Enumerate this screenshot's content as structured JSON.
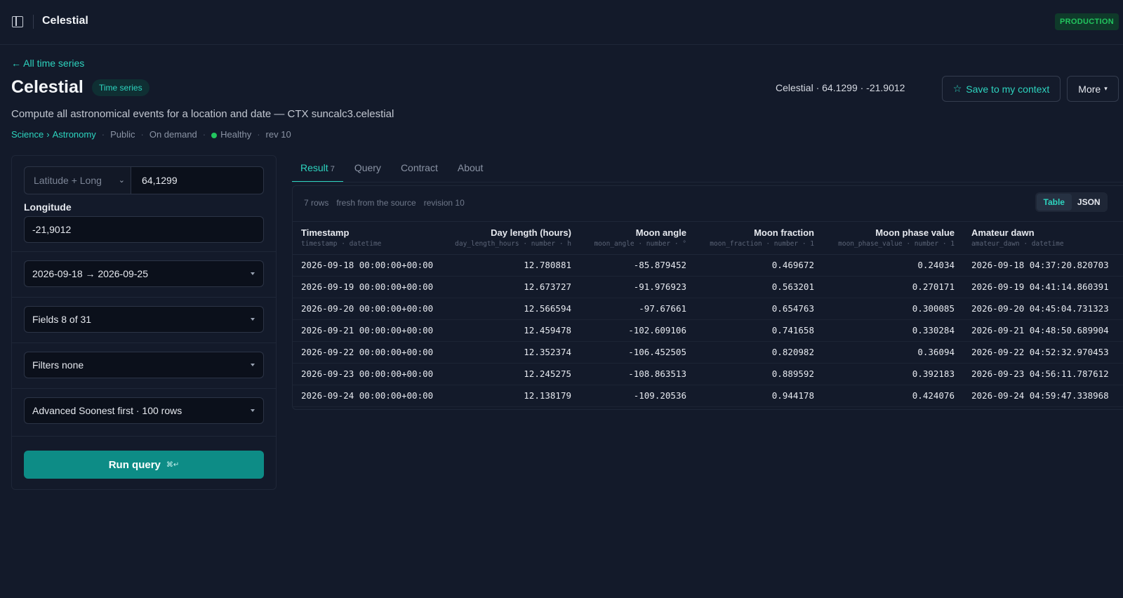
{
  "app": {
    "title": "Celestial",
    "environment": "PRODUCTION"
  },
  "header": {
    "back_link": "← All time series",
    "title": "Celestial",
    "type_badge": "Time series",
    "coords": "Celestial · 64.1299 · -21.9012",
    "save_label": "Save to my context",
    "more_label": "More",
    "description": "Compute all astronomical events for a location and date — CTX suncalc3.celestial",
    "meta": {
      "category": "Science",
      "subcategory": "Astronomy",
      "visibility": "Public",
      "mode": "On demand",
      "health": "Healthy",
      "revision": "rev 10"
    }
  },
  "query_panel": {
    "location_mode": "Latitude + Long",
    "latitude": "64,1299",
    "longitude_label": "Longitude",
    "longitude": "-21,9012",
    "date_range": "2026-09-18 → 2026-09-25",
    "fields": "Fields 8 of 31",
    "filters": "Filters none",
    "advanced": "Advanced Soonest first · 100 rows",
    "run_label": "Run query",
    "run_shortcut": "⌘↵"
  },
  "tabs": [
    {
      "label": "Result",
      "count": "7",
      "active": true
    },
    {
      "label": "Query"
    },
    {
      "label": "Contract"
    },
    {
      "label": "About"
    }
  ],
  "result": {
    "rows_label": "7 rows",
    "freshness": "fresh from the source",
    "revision": "revision 10",
    "view_table": "Table",
    "view_json": "JSON",
    "columns": [
      {
        "label": "Timestamp",
        "sub": "timestamp · datetime"
      },
      {
        "label": "Day length (hours)",
        "sub": "day_length_hours · number · h"
      },
      {
        "label": "Moon angle",
        "sub": "moon_angle · number · °"
      },
      {
        "label": "Moon fraction",
        "sub": "moon_fraction · number · 1"
      },
      {
        "label": "Moon phase value",
        "sub": "moon_phase_value · number · 1"
      },
      {
        "label": "Amateur dawn",
        "sub": "amateur_dawn · datetime"
      }
    ],
    "rows": [
      [
        "2026-09-18 00:00:00+00:00",
        "12.780881",
        "-85.879452",
        "0.469672",
        "0.24034",
        "2026-09-18 04:37:20.820703"
      ],
      [
        "2026-09-19 00:00:00+00:00",
        "12.673727",
        "-91.976923",
        "0.563201",
        "0.270171",
        "2026-09-19 04:41:14.860391"
      ],
      [
        "2026-09-20 00:00:00+00:00",
        "12.566594",
        "-97.67661",
        "0.654763",
        "0.300085",
        "2026-09-20 04:45:04.731323"
      ],
      [
        "2026-09-21 00:00:00+00:00",
        "12.459478",
        "-102.609106",
        "0.741658",
        "0.330284",
        "2026-09-21 04:48:50.689904"
      ],
      [
        "2026-09-22 00:00:00+00:00",
        "12.352374",
        "-106.452505",
        "0.820982",
        "0.36094",
        "2026-09-22 04:52:32.970453"
      ],
      [
        "2026-09-23 00:00:00+00:00",
        "12.245275",
        "-108.863513",
        "0.889592",
        "0.392183",
        "2026-09-23 04:56:11.787612"
      ],
      [
        "2026-09-24 00:00:00+00:00",
        "12.138179",
        "-109.20536",
        "0.944178",
        "0.424076",
        "2026-09-24 04:59:47.338968"
      ]
    ]
  }
}
